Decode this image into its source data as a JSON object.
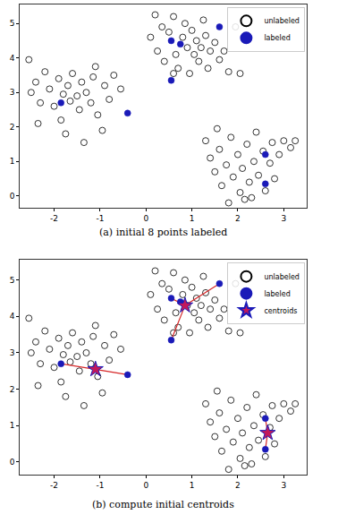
{
  "chart_data": [
    {
      "type": "scatter",
      "title": "(a) initial 8 points labeled",
      "xlim": [
        -2.75,
        3.5
      ],
      "ylim": [
        -0.35,
        5.55
      ],
      "xticks": [
        -2,
        -1,
        0,
        1,
        2,
        3
      ],
      "yticks": [
        0,
        1,
        2,
        3,
        4,
        5
      ],
      "grid": false,
      "legend": "upper right",
      "series": [
        {
          "name": "unlabeled",
          "type": "scatter",
          "marker": "circle-open",
          "color": "#000000",
          "x": [
            -2.55,
            -2.5,
            -2.4,
            -2.3,
            -2.2,
            -2.1,
            -2.0,
            -1.9,
            -1.85,
            -1.8,
            -1.7,
            -1.65,
            -1.6,
            -1.5,
            -1.45,
            -1.4,
            -1.35,
            -1.3,
            -1.2,
            -1.15,
            -1.1,
            -1.05,
            -0.95,
            -0.9,
            -0.8,
            -0.7,
            -0.55,
            -2.35,
            -1.75,
            0.1,
            0.2,
            0.25,
            0.35,
            0.4,
            0.5,
            0.6,
            0.65,
            0.7,
            0.8,
            0.85,
            0.9,
            0.95,
            1.0,
            1.05,
            1.1,
            1.15,
            1.2,
            1.3,
            1.35,
            1.4,
            1.5,
            1.6,
            1.7,
            1.8,
            1.95,
            2.05,
            0.6,
            1.25,
            1.3,
            1.4,
            1.5,
            1.6,
            1.65,
            1.75,
            1.8,
            1.85,
            1.9,
            2.0,
            2.05,
            2.1,
            2.2,
            2.25,
            2.3,
            2.35,
            2.4,
            2.45,
            2.55,
            2.6,
            2.7,
            2.75,
            2.8,
            2.9,
            3.0,
            3.15,
            3.25,
            1.55,
            2.15
          ],
          "y": [
            3.95,
            3.0,
            3.3,
            2.7,
            3.6,
            3.1,
            2.6,
            3.4,
            2.2,
            2.95,
            3.2,
            2.75,
            3.55,
            2.9,
            2.5,
            3.3,
            1.55,
            3.0,
            2.7,
            3.45,
            3.75,
            2.35,
            1.9,
            3.2,
            2.8,
            3.5,
            3.1,
            2.1,
            1.8,
            4.6,
            5.25,
            4.2,
            4.9,
            3.9,
            4.75,
            5.2,
            4.1,
            3.7,
            4.6,
            5.0,
            4.3,
            3.55,
            4.8,
            4.1,
            4.5,
            3.9,
            4.3,
            4.65,
            3.7,
            4.2,
            4.45,
            3.95,
            4.2,
            3.6,
            4.9,
            3.55,
            3.55,
            5.1,
            1.6,
            1.1,
            0.7,
            1.35,
            0.3,
            0.9,
            -0.2,
            1.7,
            0.55,
            1.2,
            0.1,
            0.8,
            1.5,
            0.4,
            -0.05,
            1.0,
            1.85,
            0.6,
            1.3,
            0.15,
            0.95,
            1.55,
            0.5,
            1.2,
            1.6,
            1.4,
            1.6,
            1.95,
            -0.1
          ]
        },
        {
          "name": "labeled",
          "type": "scatter",
          "marker": "circle",
          "color": "#1a1ab8",
          "x": [
            -1.85,
            -0.4,
            0.55,
            0.55,
            0.75,
            1.6,
            2.6,
            2.6
          ],
          "y": [
            2.7,
            2.4,
            4.5,
            3.35,
            4.4,
            4.9,
            1.2,
            0.35
          ]
        }
      ]
    },
    {
      "type": "scatter",
      "title": "(b) compute initial centroids",
      "xlim": [
        -2.75,
        3.5
      ],
      "ylim": [
        -0.35,
        5.55
      ],
      "xticks": [
        -2,
        -1,
        0,
        1,
        2,
        3
      ],
      "yticks": [
        0,
        1,
        2,
        3,
        4,
        5
      ],
      "grid": false,
      "legend": "upper right",
      "series": [
        {
          "name": "unlabeled",
          "type": "scatter",
          "marker": "circle-open",
          "color": "#000000",
          "x": [
            -2.55,
            -2.5,
            -2.4,
            -2.3,
            -2.2,
            -2.1,
            -2.0,
            -1.9,
            -1.85,
            -1.8,
            -1.7,
            -1.65,
            -1.6,
            -1.5,
            -1.45,
            -1.4,
            -1.35,
            -1.3,
            -1.2,
            -1.15,
            -1.1,
            -1.05,
            -0.95,
            -0.9,
            -0.8,
            -0.7,
            -0.55,
            -2.35,
            -1.75,
            0.1,
            0.2,
            0.25,
            0.35,
            0.4,
            0.5,
            0.6,
            0.65,
            0.7,
            0.8,
            0.85,
            0.9,
            0.95,
            1.0,
            1.05,
            1.1,
            1.15,
            1.2,
            1.3,
            1.35,
            1.4,
            1.5,
            1.6,
            1.7,
            1.8,
            1.95,
            2.05,
            0.6,
            1.25,
            1.3,
            1.4,
            1.5,
            1.6,
            1.65,
            1.75,
            1.8,
            1.85,
            1.9,
            2.0,
            2.05,
            2.1,
            2.2,
            2.25,
            2.3,
            2.35,
            2.4,
            2.45,
            2.55,
            2.6,
            2.7,
            2.75,
            2.8,
            2.9,
            3.0,
            3.15,
            3.25,
            1.55,
            2.15
          ],
          "y": [
            3.95,
            3.0,
            3.3,
            2.7,
            3.6,
            3.1,
            2.6,
            3.4,
            2.2,
            2.95,
            3.2,
            2.75,
            3.55,
            2.9,
            2.5,
            3.3,
            1.55,
            3.0,
            2.7,
            3.45,
            3.75,
            2.35,
            1.9,
            3.2,
            2.8,
            3.5,
            3.1,
            2.1,
            1.8,
            4.6,
            5.25,
            4.2,
            4.9,
            3.9,
            4.75,
            5.2,
            4.1,
            3.7,
            4.6,
            5.0,
            4.3,
            3.55,
            4.8,
            4.1,
            4.5,
            3.9,
            4.3,
            4.65,
            3.7,
            4.2,
            4.45,
            3.95,
            4.2,
            3.6,
            4.9,
            3.55,
            3.55,
            5.1,
            1.6,
            1.1,
            0.7,
            1.35,
            0.3,
            0.9,
            -0.2,
            1.7,
            0.55,
            1.2,
            0.1,
            0.8,
            1.5,
            0.4,
            -0.05,
            1.0,
            1.85,
            0.6,
            1.3,
            0.15,
            0.95,
            1.55,
            0.5,
            1.2,
            1.6,
            1.4,
            1.6,
            1.95,
            -0.1
          ]
        },
        {
          "type": "line",
          "line_style": "solid",
          "color": "#d62728",
          "x": [
            -1.85,
            -1.1,
            -0.4,
            null,
            0.55,
            0.85,
            0.55,
            null,
            0.75,
            0.85,
            1.6,
            null,
            2.6,
            2.65,
            2.6
          ],
          "y": [
            2.7,
            2.55,
            2.4,
            null,
            4.5,
            4.3,
            3.35,
            null,
            4.4,
            4.3,
            4.9,
            null,
            1.2,
            0.8,
            0.35
          ]
        },
        {
          "name": "labeled",
          "type": "scatter",
          "marker": "circle",
          "color": "#1a1ab8",
          "x": [
            -1.85,
            -0.4,
            0.55,
            0.55,
            0.75,
            1.6,
            2.6,
            2.6
          ],
          "y": [
            2.7,
            2.4,
            4.5,
            3.35,
            4.4,
            4.9,
            1.2,
            0.35
          ]
        },
        {
          "name": "centroids",
          "type": "scatter",
          "marker": "star",
          "color": "#c2185b",
          "x": [
            -1.1,
            0.85,
            2.65
          ],
          "y": [
            2.55,
            4.3,
            0.8
          ]
        }
      ]
    }
  ]
}
